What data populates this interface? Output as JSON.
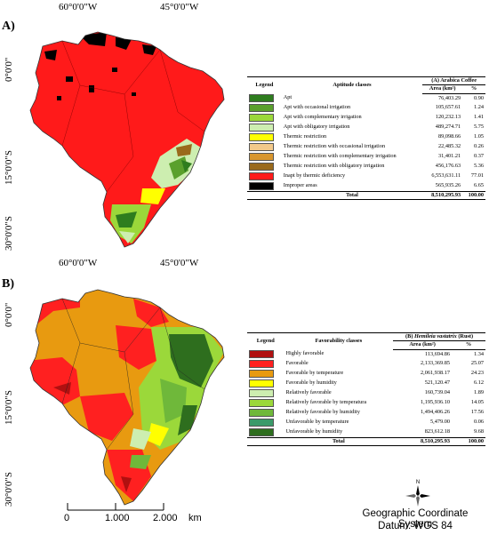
{
  "panelA": {
    "label": "A)",
    "lon_ticks": [
      "60°0'0\"W",
      "45°0'0\"W"
    ],
    "lat_ticks": [
      "0°0'0\"",
      "15°0'0\"S",
      "30°0'0\"S"
    ],
    "legend": {
      "col_legend": "Legend",
      "col_classes": "Aptitude classes",
      "col_group": "(A) Arabica Coffee",
      "col_area": "Area (km²)",
      "col_pct": "%",
      "rows": [
        {
          "color": "#2e7d1e",
          "label": "Apt",
          "area": "76,403.29",
          "pct": "0.90"
        },
        {
          "color": "#5aa02c",
          "label": "Apt with occasional irrigation",
          "area": "105,657.61",
          "pct": "1.24"
        },
        {
          "color": "#9bd83a",
          "label": "Apt with complementary irrigation",
          "area": "120,232.13",
          "pct": "1.41"
        },
        {
          "color": "#cdeeb0",
          "label": "Apt with obligatory irrigation",
          "area": "489,274.71",
          "pct": "5.75"
        },
        {
          "color": "#ffff00",
          "label": "Thermic restriction",
          "area": "89,098.66",
          "pct": "1.05"
        },
        {
          "color": "#f2c98a",
          "label": "Thermic restriction with occasional irrigation",
          "area": "22,485.32",
          "pct": "0.26"
        },
        {
          "color": "#d8962e",
          "label": "Thermic restriction with complementary irrigation",
          "area": "31,401.21",
          "pct": "0.37"
        },
        {
          "color": "#9a6a1c",
          "label": "Thermic restriction with obligatory irrigation",
          "area": "456,176.63",
          "pct": "5.36"
        },
        {
          "color": "#ff1a1a",
          "label": "Inapt by thermic deficiency",
          "area": "6,553,631.11",
          "pct": "77.01"
        },
        {
          "color": "#000000",
          "label": "Improper areas",
          "area": "565,935.26",
          "pct": "6.65"
        }
      ],
      "total_label": "Total",
      "total_area": "8,510,295.93",
      "total_pct": "100.00"
    }
  },
  "panelB": {
    "label": "B)",
    "lon_ticks": [
      "60°0'0\"W",
      "45°0'0\"W"
    ],
    "lat_ticks": [
      "0°0'0\"",
      "15°0'0\"S",
      "30°0'0\"S"
    ],
    "legend": {
      "col_legend": "Legend",
      "col_classes": "Favorability classes",
      "col_group_prefix": "(B) ",
      "col_group_italic": "Hemileia vastatrix",
      "col_group_suffix": " (Rust)",
      "col_area": "Area (km²)",
      "col_pct": "%",
      "rows": [
        {
          "color": "#b01010",
          "label": "Highly favorable",
          "area": "113,694.86",
          "pct": "1.34"
        },
        {
          "color": "#ff2020",
          "label": "Favorable",
          "area": "2,133,369.85",
          "pct": "25.07"
        },
        {
          "color": "#e89a10",
          "label": "Favorable by temperature",
          "area": "2,061,938.17",
          "pct": "24.23"
        },
        {
          "color": "#ffff00",
          "label": "Favorable by humidity",
          "area": "521,120.47",
          "pct": "6.12"
        },
        {
          "color": "#cdeeb0",
          "label": "Relatively favorable",
          "area": "160,739.04",
          "pct": "1.89"
        },
        {
          "color": "#9bd83a",
          "label": "Relatively favorable by temperatura",
          "area": "1,195,936.10",
          "pct": "14.05"
        },
        {
          "color": "#6fb83a",
          "label": "Relatively favorable by humidity",
          "area": "1,494,406.26",
          "pct": "17.56"
        },
        {
          "color": "#3a9a6a",
          "label": "Unfavorable by temperature",
          "area": "5,479.00",
          "pct": "0.06"
        },
        {
          "color": "#2e6e1e",
          "label": "Unfavorable by humidity",
          "area": "823,612.18",
          "pct": "9.68"
        }
      ],
      "total_label": "Total",
      "total_area": "8,510,295.93",
      "total_pct": "100.00"
    }
  },
  "scale": {
    "labels": [
      "0",
      "1.000",
      "2.000"
    ],
    "unit": "km"
  },
  "north_label": "N",
  "crs": {
    "line1": "Geographic Coordinate System",
    "line2": "Datum: WGS 84"
  }
}
